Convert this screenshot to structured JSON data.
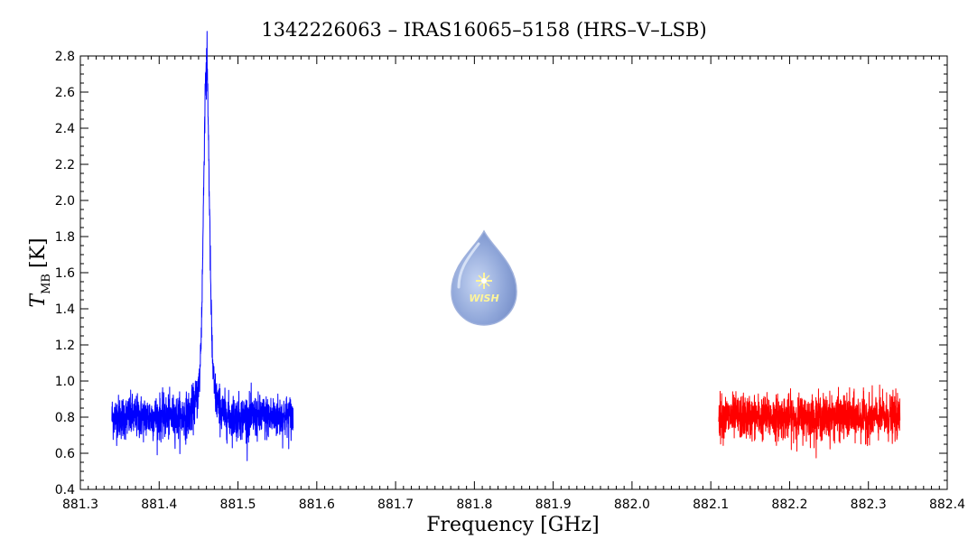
{
  "chart_data": {
    "type": "line",
    "title": "1342226063 – IRAS16065–5158 (HRS–V–LSB)",
    "xlabel": "Frequency [GHz]",
    "ylabel_main": "T",
    "ylabel_sub": "MB",
    "ylabel_unit": "[K]",
    "xlim": [
      881.3,
      882.4
    ],
    "ylim": [
      0.4,
      2.8
    ],
    "x_ticks": [
      "881.3",
      "881.4",
      "881.5",
      "881.6",
      "881.7",
      "881.8",
      "881.9",
      "882.0",
      "882.1",
      "882.2",
      "882.3",
      "882.4"
    ],
    "y_ticks": [
      "0.4",
      "0.6",
      "0.8",
      "1.0",
      "1.2",
      "1.4",
      "1.6",
      "1.8",
      "2.0",
      "2.2",
      "2.4",
      "2.6",
      "2.8"
    ],
    "grid": false,
    "series": [
      {
        "color": "#0000ff",
        "x_range": [
          881.34,
          881.57
        ],
        "baseline": 0.8,
        "noise_rms": 0.06,
        "peak": {
          "x": 881.46,
          "y": 2.56
        }
      },
      {
        "color": "#ff0000",
        "x_range": [
          882.11,
          882.34
        ],
        "baseline": 0.8,
        "noise_rms": 0.06
      }
    ],
    "watermark": {
      "logo_text": "WISH"
    }
  }
}
